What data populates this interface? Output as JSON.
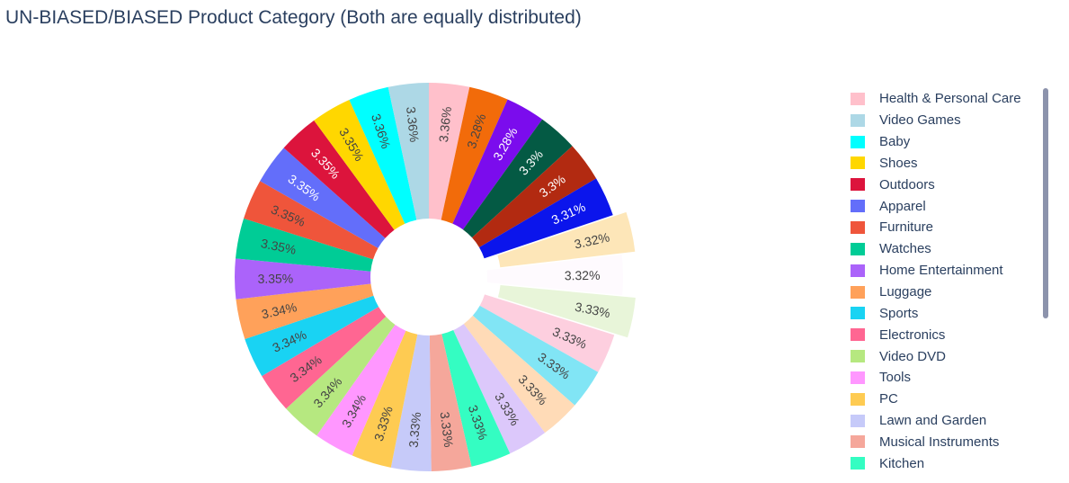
{
  "chart_data": {
    "type": "pie",
    "hole": true,
    "title": "UN-BIASED/BIASED Product Category (Both are equally distributed)",
    "slices": [
      {
        "label": "Health & Personal Care",
        "value": 3.36,
        "text": "3.36%",
        "color": "#ffc0cb"
      },
      {
        "label": "",
        "value": 3.28,
        "text": "3.28%",
        "color": "#f26b0a"
      },
      {
        "label": "",
        "value": 3.28,
        "text": "3.28%",
        "color": "#7b0ced"
      },
      {
        "label": "",
        "value": 3.3,
        "text": "3.3%",
        "color": "#045a44"
      },
      {
        "label": "",
        "value": 3.3,
        "text": "3.3%",
        "color": "#b22a11"
      },
      {
        "label": "",
        "value": 3.31,
        "text": "3.31%",
        "color": "#0b15ec"
      },
      {
        "label": "",
        "value": 3.32,
        "text": "3.32%",
        "color": "#fde6b8"
      },
      {
        "label": "",
        "value": 3.32,
        "text": "3.32%",
        "color": "#fefafe"
      },
      {
        "label": "",
        "value": 3.33,
        "text": "3.33%",
        "color": "#e8f5d9"
      },
      {
        "label": "",
        "value": 3.33,
        "text": "3.33%",
        "color": "#fdcfdf"
      },
      {
        "label": "",
        "value": 3.33,
        "text": "3.33%",
        "color": "#81e5f5"
      },
      {
        "label": "",
        "value": 3.33,
        "text": "3.33%",
        "color": "#ffdbb7"
      },
      {
        "label": "",
        "value": 3.33,
        "text": "3.33%",
        "color": "#dcc8fb"
      },
      {
        "label": "Kitchen",
        "value": 3.33,
        "text": "3.33%",
        "color": "#34fdc2"
      },
      {
        "label": "Musical Instruments",
        "value": 3.33,
        "text": "3.33%",
        "color": "#f5a79b"
      },
      {
        "label": "Lawn and Garden",
        "value": 3.33,
        "text": "3.33%",
        "color": "#c6caf9"
      },
      {
        "label": "PC",
        "value": 3.33,
        "text": "3.33%",
        "color": "#fecb52"
      },
      {
        "label": "Tools",
        "value": 3.34,
        "text": "3.34%",
        "color": "#ff97ff"
      },
      {
        "label": "Video DVD",
        "value": 3.34,
        "text": "3.34%",
        "color": "#b6e880"
      },
      {
        "label": "Electronics",
        "value": 3.34,
        "text": "3.34%",
        "color": "#ff6692"
      },
      {
        "label": "Sports",
        "value": 3.34,
        "text": "3.34%",
        "color": "#19d3f3"
      },
      {
        "label": "Luggage",
        "value": 3.34,
        "text": "3.34%",
        "color": "#ffa15a"
      },
      {
        "label": "Home Entertainment",
        "value": 3.35,
        "text": "3.35%",
        "color": "#ab63fa"
      },
      {
        "label": "Watches",
        "value": 3.35,
        "text": "3.35%",
        "color": "#00cc96"
      },
      {
        "label": "Furniture",
        "value": 3.35,
        "text": "3.35%",
        "color": "#ef553b"
      },
      {
        "label": "Apparel",
        "value": 3.35,
        "text": "3.35%",
        "color": "#636efa"
      },
      {
        "label": "Outdoors",
        "value": 3.35,
        "text": "3.35%",
        "color": "#dc143c"
      },
      {
        "label": "Shoes",
        "value": 3.35,
        "text": "3.35%",
        "color": "#ffd700"
      },
      {
        "label": "Baby",
        "value": 3.36,
        "text": "3.36%",
        "color": "#00ffff"
      },
      {
        "label": "Video Games",
        "value": 3.36,
        "text": "3.36%",
        "color": "#add8e6"
      }
    ],
    "pulled_slices": [
      6,
      8
    ],
    "legend": {
      "placement": "right",
      "scrollable": true,
      "items": [
        {
          "label": "Health & Personal Care",
          "color": "#ffc0cb"
        },
        {
          "label": "Video Games",
          "color": "#add8e6"
        },
        {
          "label": "Baby",
          "color": "#00ffff"
        },
        {
          "label": "Shoes",
          "color": "#ffd700"
        },
        {
          "label": "Outdoors",
          "color": "#dc143c"
        },
        {
          "label": "Apparel",
          "color": "#636efa"
        },
        {
          "label": "Furniture",
          "color": "#ef553b"
        },
        {
          "label": "Watches",
          "color": "#00cc96"
        },
        {
          "label": "Home Entertainment",
          "color": "#ab63fa"
        },
        {
          "label": "Luggage",
          "color": "#ffa15a"
        },
        {
          "label": "Sports",
          "color": "#19d3f3"
        },
        {
          "label": "Electronics",
          "color": "#ff6692"
        },
        {
          "label": "Video DVD",
          "color": "#b6e880"
        },
        {
          "label": "Tools",
          "color": "#ff97ff"
        },
        {
          "label": "PC",
          "color": "#fecb52"
        },
        {
          "label": "Lawn and Garden",
          "color": "#c6caf9"
        },
        {
          "label": "Musical Instruments",
          "color": "#f5a79b"
        },
        {
          "label": "Kitchen",
          "color": "#34fdc2"
        }
      ]
    }
  }
}
